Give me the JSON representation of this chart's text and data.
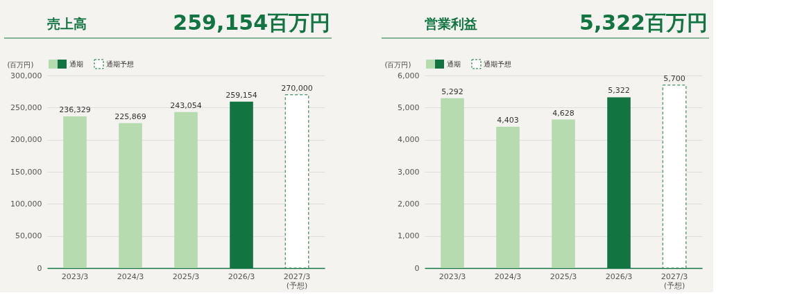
{
  "chart_data": [
    {
      "type": "bar",
      "title": "売上高",
      "subtitle": "259,154百万円",
      "ylabel": "(百万円)",
      "categories": [
        "2023/3",
        "2024/3",
        "2025/3",
        "2026/3",
        "2027/3\n(予想)"
      ],
      "series": [
        {
          "name": "通期",
          "values": [
            236329,
            225869,
            243054,
            259154,
            null
          ],
          "value_labels": [
            "236,329",
            "225,869",
            "243,054",
            "259,154",
            null
          ],
          "colors": [
            "#b5dbae",
            "#b5dbae",
            "#b5dbae",
            "#127541",
            null
          ]
        },
        {
          "name": "通期予想",
          "values": [
            null,
            null,
            null,
            null,
            270000
          ],
          "value_labels": [
            null,
            null,
            null,
            null,
            "270,000"
          ],
          "color": "#ffffff",
          "line_style": "dashed"
        }
      ],
      "ylim": [
        0,
        300000
      ],
      "yticks": [
        0,
        {
          "value": 50000,
          "label": "50,000"
        },
        {
          "value": 100000,
          "label": "100,000"
        },
        {
          "value": 150000,
          "label": "150,000"
        },
        {
          "value": 200000,
          "label": "200,000"
        },
        {
          "value": 250000,
          "label": "250,000"
        },
        {
          "value": 300000,
          "label": "300,000"
        }
      ],
      "grid": "y",
      "legend": "top left"
    },
    {
      "type": "bar",
      "title": "営業利益",
      "subtitle": "5,322百万円",
      "ylabel": "(百万円)",
      "categories": [
        "2023/3",
        "2024/3",
        "2025/3",
        "2026/3",
        "2027/3\n(予想)"
      ],
      "series": [
        {
          "name": "通期",
          "values": [
            5292,
            4403,
            4628,
            5322,
            null
          ],
          "value_labels": [
            "5,292",
            "4,403",
            "4,628",
            "5,322",
            null
          ],
          "colors": [
            "#b5dbae",
            "#b5dbae",
            "#b5dbae",
            "#127541",
            null
          ]
        },
        {
          "name": "通期予想",
          "values": [
            null,
            null,
            null,
            null,
            5700
          ],
          "value_labels": [
            null,
            null,
            null,
            null,
            "5,700"
          ],
          "color": "#ffffff",
          "line_style": "dashed"
        }
      ],
      "ylim": [
        0,
        6000
      ],
      "yticks": [
        0,
        {
          "value": 1000,
          "label": "1,000"
        },
        {
          "value": 2000,
          "label": "2,000"
        },
        {
          "value": 3000,
          "label": "3,000"
        },
        {
          "value": 4000,
          "label": "4,000"
        },
        {
          "value": 5000,
          "label": "5,000"
        },
        {
          "value": 6000,
          "label": "6,000"
        }
      ],
      "grid": "y",
      "legend": "top left"
    }
  ]
}
